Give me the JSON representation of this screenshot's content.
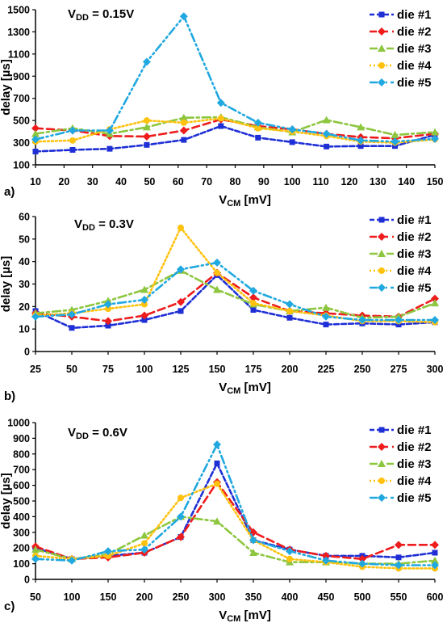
{
  "series_styles": [
    {
      "color": "#1f2fd6",
      "dash": "6,3",
      "marker": "square"
    },
    {
      "color": "#ee1c1c",
      "dash": "9,5",
      "marker": "diamond"
    },
    {
      "color": "#8dc63f",
      "dash": "10,4,3,4",
      "marker": "triangle"
    },
    {
      "color": "#ffc20e",
      "dash": "2,3",
      "marker": "circle"
    },
    {
      "color": "#20a8e0",
      "dash": "10,4,2,4,2,4",
      "marker": "diamond"
    }
  ],
  "chart_data": [
    {
      "type": "line",
      "panel_label": "a)",
      "annotation_main": "V",
      "annotation_sub": "DD",
      "annotation_rest": " = 0.15V",
      "xlabel_main": "V",
      "xlabel_sub": "CM",
      "xlabel_rest": " [mV]",
      "ylabel": "delay [µs]",
      "x": [
        10,
        23,
        36,
        49,
        62,
        75,
        88,
        100,
        112,
        124,
        136,
        150
      ],
      "x_ticks": [
        10,
        20,
        30,
        40,
        50,
        60,
        70,
        80,
        90,
        100,
        110,
        120,
        130,
        140,
        150
      ],
      "xlim": [
        10,
        150
      ],
      "ylim": [
        100,
        1500
      ],
      "y_ticks": [
        100,
        300,
        500,
        700,
        900,
        1100,
        1300,
        1500
      ],
      "legend_position": "top-right",
      "series": [
        {
          "name": "die #1",
          "values": [
            220,
            235,
            245,
            280,
            325,
            450,
            345,
            305,
            265,
            270,
            270,
            370
          ]
        },
        {
          "name": "die #2",
          "values": [
            430,
            410,
            360,
            355,
            410,
            510,
            450,
            420,
            380,
            350,
            340,
            380
          ]
        },
        {
          "name": "die #3",
          "values": [
            380,
            430,
            380,
            440,
            525,
            530,
            440,
            395,
            505,
            440,
            370,
            395
          ]
        },
        {
          "name": "die #4",
          "values": [
            310,
            320,
            420,
            500,
            480,
            520,
            430,
            400,
            360,
            310,
            300,
            330
          ]
        },
        {
          "name": "die #5",
          "values": [
            330,
            410,
            410,
            1030,
            1440,
            660,
            480,
            420,
            380,
            320,
            310,
            335
          ]
        }
      ]
    },
    {
      "type": "line",
      "panel_label": "b)",
      "annotation_main": "V",
      "annotation_sub": "DD",
      "annotation_rest": " = 0.3V",
      "xlabel_main": "V",
      "xlabel_sub": "CM",
      "xlabel_rest": " [mV]",
      "ylabel": "delay [µs]",
      "x": [
        25,
        50,
        75,
        100,
        125,
        150,
        175,
        200,
        225,
        250,
        275,
        300
      ],
      "x_ticks": [
        25,
        50,
        75,
        100,
        125,
        150,
        175,
        200,
        225,
        250,
        275,
        300
      ],
      "xlim": [
        25,
        300
      ],
      "ylim": [
        0,
        60
      ],
      "y_ticks": [
        0,
        10,
        20,
        30,
        40,
        50,
        60
      ],
      "legend_position": "top-right",
      "series": [
        {
          "name": "die #1",
          "values": [
            18,
            10.5,
            11.5,
            14,
            18,
            34,
            18.5,
            15,
            12,
            12.5,
            12,
            13
          ]
        },
        {
          "name": "die #2",
          "values": [
            17,
            15.5,
            13.5,
            16,
            22,
            35,
            24,
            18,
            17,
            16,
            15.5,
            23.5
          ]
        },
        {
          "name": "die #3",
          "values": [
            17,
            18.5,
            22.5,
            27.5,
            36,
            27.5,
            21,
            18,
            19.5,
            15,
            15.5,
            21.5
          ]
        },
        {
          "name": "die #4",
          "values": [
            16,
            17,
            19,
            21,
            55,
            35,
            21.5,
            18,
            16,
            13.5,
            13.5,
            13
          ]
        },
        {
          "name": "die #5",
          "values": [
            15.5,
            16.5,
            21,
            23,
            36.5,
            39.5,
            27,
            21,
            15.5,
            14,
            14,
            14
          ]
        }
      ]
    },
    {
      "type": "line",
      "panel_label": "c)",
      "annotation_main": "V",
      "annotation_sub": "DD",
      "annotation_rest": " = 0.6V",
      "xlabel_main": "V",
      "xlabel_sub": "CM",
      "xlabel_rest": " [mV]",
      "ylabel": "delay [µs]",
      "x": [
        50,
        100,
        150,
        200,
        250,
        300,
        350,
        400,
        450,
        500,
        550,
        600
      ],
      "x_ticks": [
        50,
        100,
        150,
        200,
        250,
        300,
        350,
        400,
        450,
        500,
        550,
        600
      ],
      "xlim": [
        50,
        600
      ],
      "ylim": [
        0,
        1000
      ],
      "y_ticks": [
        0,
        100,
        200,
        300,
        400,
        500,
        600,
        700,
        800,
        900,
        1000
      ],
      "legend_position": "top-right",
      "series": [
        {
          "name": "die #1",
          "values": [
            200,
            130,
            150,
            170,
            270,
            740,
            250,
            190,
            150,
            150,
            140,
            170
          ]
        },
        {
          "name": "die #2",
          "values": [
            210,
            130,
            140,
            170,
            270,
            620,
            300,
            190,
            150,
            130,
            220,
            220
          ]
        },
        {
          "name": "die #3",
          "values": [
            190,
            130,
            160,
            280,
            400,
            370,
            170,
            110,
            110,
            100,
            100,
            120
          ]
        },
        {
          "name": "die #4",
          "values": [
            150,
            130,
            150,
            230,
            520,
            610,
            250,
            130,
            110,
            80,
            70,
            70
          ]
        },
        {
          "name": "die #5",
          "values": [
            130,
            120,
            180,
            190,
            400,
            860,
            250,
            180,
            120,
            100,
            90,
            90
          ]
        }
      ]
    }
  ]
}
